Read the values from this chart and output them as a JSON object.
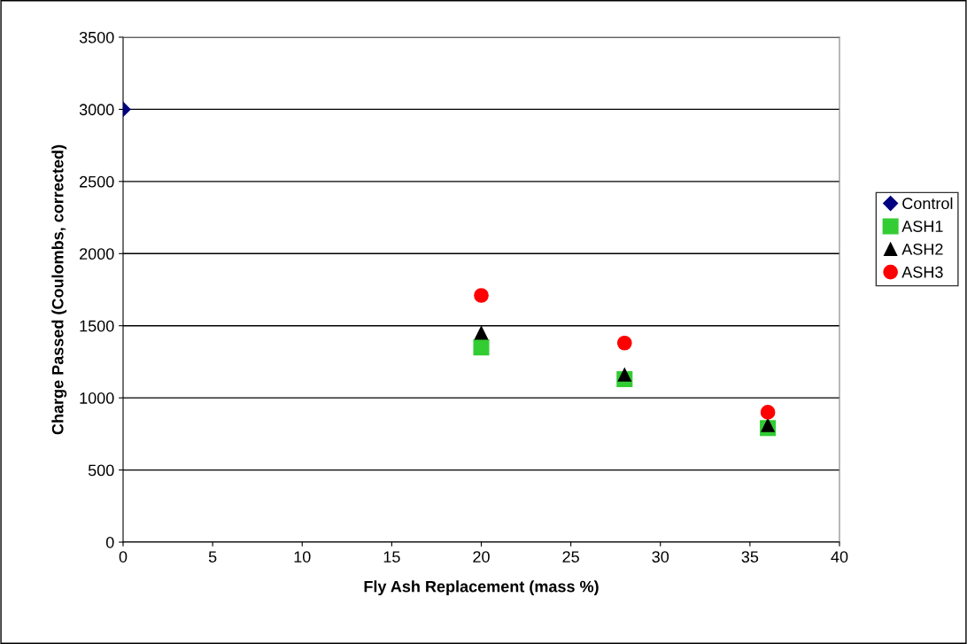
{
  "chart_data": {
    "type": "scatter",
    "xlabel": "Fly Ash Replacement (mass %)",
    "ylabel": "Charge Passed (Coulombs, corrected)",
    "xlim": [
      0,
      40
    ],
    "xticks": [
      0,
      5,
      10,
      15,
      20,
      25,
      30,
      35,
      40
    ],
    "ylim": [
      0,
      3500
    ],
    "yticks": [
      0,
      500,
      1000,
      1500,
      2000,
      2500,
      3000,
      3500
    ],
    "grid": "y",
    "legend": "right",
    "series": [
      {
        "name": "Control",
        "color": "#000080",
        "marker": "diamond",
        "x": [
          0
        ],
        "values": [
          3000
        ]
      },
      {
        "name": "ASH1",
        "color": "#33cc33",
        "marker": "square",
        "x": [
          20,
          28,
          36
        ],
        "values": [
          1350,
          1130,
          790
        ]
      },
      {
        "name": "ASH2",
        "color": "#000000",
        "marker": "triangle",
        "x": [
          20,
          28,
          36
        ],
        "values": [
          1450,
          1160,
          810
        ]
      },
      {
        "name": "ASH3",
        "color": "#ff0000",
        "marker": "circle",
        "x": [
          20,
          28,
          36
        ],
        "values": [
          1710,
          1380,
          900
        ]
      }
    ]
  }
}
